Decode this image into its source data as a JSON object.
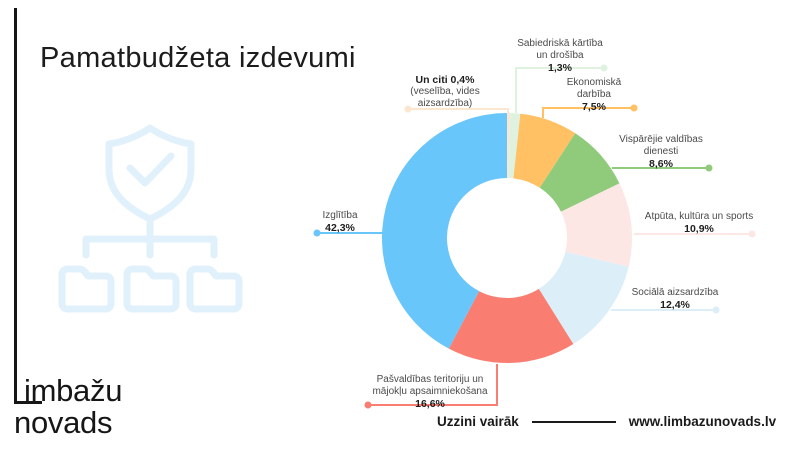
{
  "header": {
    "title": "Pamatbudžeta izdevumi"
  },
  "brand": {
    "word1": "imbažu",
    "word2": "novads",
    "full_name": "Limbažu novads"
  },
  "icons": {
    "watermark": "shield-check-over-three-folders"
  },
  "footer": {
    "cta": "Uzzini vairāk",
    "website": "www.limbazunovads.lv"
  },
  "chart_data": {
    "type": "pie",
    "subtype": "donut",
    "title": "Pamatbudžeta izdevumi",
    "start_angle_deg": 0,
    "direction": "clockwise",
    "segments": [
      {
        "label": "Un citi (veselība, vides aizsardzība)",
        "value": 0.4,
        "display": "0,4%",
        "color": "#FBE7CF"
      },
      {
        "label": "Sabiedriskā kārtība un drošība",
        "value": 1.3,
        "display": "1,3%",
        "color": "#DFF2DF"
      },
      {
        "label": "Ekonomiskā darbība",
        "value": 7.5,
        "display": "7,5%",
        "color": "#FFC164"
      },
      {
        "label": "Vispārējie valdības dienesti",
        "value": 8.6,
        "display": "8,6%",
        "color": "#8FCB7B"
      },
      {
        "label": "Atpūta, kultūra un sports",
        "value": 10.9,
        "display": "10,9%",
        "color": "#FCE7E5"
      },
      {
        "label": "Sociālā aizsardzība",
        "value": 12.4,
        "display": "12,4%",
        "color": "#DCEFF8"
      },
      {
        "label": "Pašvaldības teritoriju un mājokļu apsaimniekošana",
        "value": 16.6,
        "display": "16,6%",
        "color": "#F97D71"
      },
      {
        "label": "Izglītība",
        "value": 42.3,
        "display": "42,3%",
        "color": "#69C6FA"
      }
    ]
  },
  "callouts": {
    "unciti": {
      "bold": "Un citi 0,4%",
      "line1": "(veselība, vides",
      "line2": "aizsardzība)"
    },
    "sabiedriska": {
      "line1": "Sabiedriskā kārtība",
      "line2": "un drošība",
      "pct": "1,3%"
    },
    "ekonomiska": {
      "line1": "Ekonomiskā",
      "line2": "darbība",
      "pct": "7,5%"
    },
    "visparejie": {
      "line1": "Vispārējie valdības",
      "line2": "dienesti",
      "pct": "8,6%"
    },
    "atputa": {
      "line1": "Atpūta, kultūra un sports",
      "pct": "10,9%"
    },
    "sociala": {
      "line1": "Sociālā aizsardzība",
      "pct": "12,4%"
    },
    "pasvaldibas": {
      "line1": "Pašvaldības teritoriju un",
      "line2": "mājokļu apsaimniekošana",
      "pct": "16,6%"
    },
    "izglitiba": {
      "line1": "Izglītība",
      "pct": "42,3%"
    }
  }
}
